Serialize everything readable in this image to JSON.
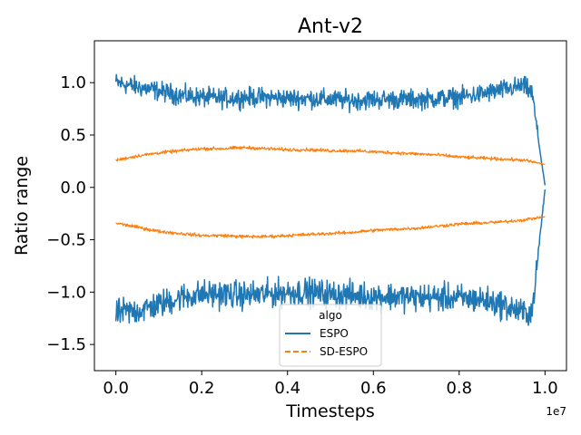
{
  "chart_data": {
    "type": "line",
    "title": "Ant-v2",
    "xlabel": "Timesteps",
    "ylabel": "Ratio range",
    "x_offset_label": "1e7",
    "xlim": [
      -0.05,
      1.05
    ],
    "ylim": [
      -1.75,
      1.4
    ],
    "x_ticks": [
      0.0,
      0.2,
      0.4,
      0.6,
      0.8,
      1.0
    ],
    "x_tick_labels": [
      "0.0",
      "0.2",
      "0.4",
      "0.6",
      "0.8",
      "1.0"
    ],
    "y_ticks": [
      -1.5,
      -1.0,
      -0.5,
      0.0,
      0.5,
      1.0
    ],
    "y_tick_labels": [
      "−1.5",
      "−1.0",
      "−0.5",
      "0.0",
      "0.5",
      "1.0"
    ],
    "grid": false,
    "legend": {
      "title": "algo",
      "position": "lower-center",
      "entries": [
        {
          "label": "ESPO",
          "color": "#1f77b4",
          "style": "solid"
        },
        {
          "label": "SD-ESPO",
          "color": "#ff7f0e",
          "style": "dashed"
        }
      ]
    },
    "series": [
      {
        "name": "ESPO",
        "part": "upper",
        "color": "#1f77b4",
        "noise": 0.07,
        "x": [
          0.0,
          0.05,
          0.1,
          0.15,
          0.2,
          0.25,
          0.3,
          0.35,
          0.4,
          0.45,
          0.5,
          0.55,
          0.6,
          0.65,
          0.7,
          0.75,
          0.8,
          0.85,
          0.9,
          0.95,
          0.97,
          0.98,
          0.99,
          1.0
        ],
        "y": [
          1.0,
          0.96,
          0.92,
          0.88,
          0.86,
          0.85,
          0.86,
          0.86,
          0.85,
          0.85,
          0.84,
          0.83,
          0.84,
          0.84,
          0.84,
          0.85,
          0.86,
          0.89,
          0.93,
          0.97,
          0.9,
          0.6,
          0.3,
          0.02
        ]
      },
      {
        "name": "ESPO",
        "part": "lower",
        "color": "#1f77b4",
        "noise": 0.1,
        "x": [
          0.0,
          0.05,
          0.1,
          0.15,
          0.2,
          0.25,
          0.3,
          0.35,
          0.4,
          0.45,
          0.5,
          0.55,
          0.6,
          0.65,
          0.7,
          0.75,
          0.8,
          0.85,
          0.9,
          0.95,
          0.97,
          0.98,
          0.99,
          1.0
        ],
        "y": [
          -1.2,
          -1.18,
          -1.12,
          -1.05,
          -1.02,
          -1.02,
          -1.03,
          -1.02,
          -1.0,
          -1.0,
          -1.02,
          -1.03,
          -1.04,
          -1.04,
          -1.05,
          -1.05,
          -1.06,
          -1.07,
          -1.12,
          -1.2,
          -1.18,
          -0.8,
          -0.4,
          -0.02
        ]
      },
      {
        "name": "SD-ESPO",
        "part": "upper",
        "color": "#ff7f0e",
        "noise": 0.012,
        "x": [
          0.0,
          0.05,
          0.1,
          0.15,
          0.2,
          0.25,
          0.3,
          0.35,
          0.4,
          0.45,
          0.5,
          0.55,
          0.6,
          0.65,
          0.7,
          0.75,
          0.8,
          0.85,
          0.9,
          0.95,
          1.0
        ],
        "y": [
          0.26,
          0.3,
          0.33,
          0.35,
          0.37,
          0.37,
          0.38,
          0.37,
          0.36,
          0.36,
          0.35,
          0.35,
          0.34,
          0.33,
          0.32,
          0.31,
          0.29,
          0.28,
          0.27,
          0.26,
          0.22
        ]
      },
      {
        "name": "SD-ESPO",
        "part": "lower",
        "color": "#ff7f0e",
        "noise": 0.012,
        "x": [
          0.0,
          0.05,
          0.1,
          0.15,
          0.2,
          0.25,
          0.3,
          0.35,
          0.4,
          0.45,
          0.5,
          0.55,
          0.6,
          0.65,
          0.7,
          0.75,
          0.8,
          0.85,
          0.9,
          0.95,
          1.0
        ],
        "y": [
          -0.34,
          -0.38,
          -0.42,
          -0.44,
          -0.46,
          -0.46,
          -0.47,
          -0.47,
          -0.46,
          -0.45,
          -0.44,
          -0.43,
          -0.41,
          -0.4,
          -0.39,
          -0.37,
          -0.35,
          -0.34,
          -0.33,
          -0.31,
          -0.28
        ]
      }
    ]
  }
}
